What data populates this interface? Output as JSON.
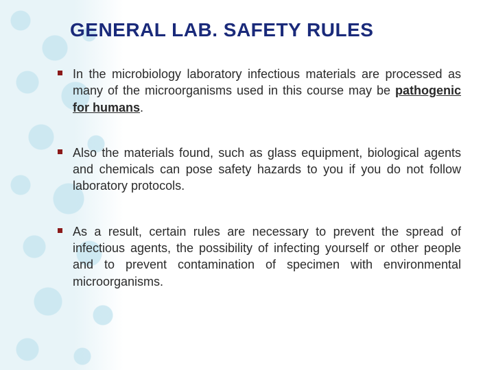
{
  "title": {
    "text": "GENERAL LAB. SAFETY RULES",
    "color": "#1a2a7a",
    "fontsize": 28
  },
  "bullet_marker_color": "#8b1a1a",
  "body_color": "#2a2a2a",
  "body_fontsize": 18,
  "bullets": [
    {
      "pre": "In the microbiology laboratory infectious materials are processed as many of the microorganisms used in this    course may be ",
      "emph": "pathogenic for humans",
      "post": "."
    },
    {
      "pre": "Also the materials found, such as glass equipment, biological agents and chemicals can pose safety hazards to you if you do not follow laboratory protocols.",
      "emph": "",
      "post": ""
    },
    {
      "pre": " As a result, certain rules are necessary to prevent the spread of infectious agents, the possibility of infecting yourself or other people and to prevent contamination of specimen with environmental microorganisms.",
      "emph": "",
      "post": ""
    }
  ],
  "background": {
    "droplet_tint": "#cfe8f0",
    "page_bg": "#ffffff"
  }
}
